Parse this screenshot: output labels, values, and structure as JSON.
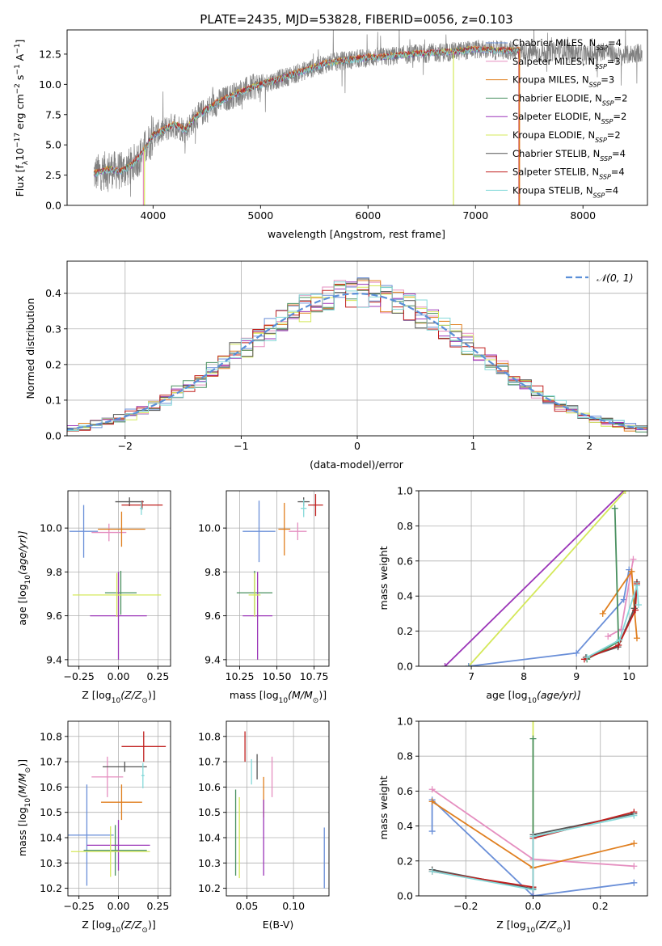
{
  "title": "PLATE=2435, MJD=53828, FIBERID=0056, z=0.103",
  "colors": {
    "Chabrier MILES": "#6a8fd8",
    "Salpeter MILES": "#e58fc0",
    "Kroupa MILES": "#e07f1f",
    "Chabrier ELODIE": "#4a9060",
    "Salpeter ELODIE": "#9b35b8",
    "Kroupa ELODIE": "#d4e85a",
    "Chabrier STELIB": "#555555",
    "Salpeter STELIB": "#c0201f",
    "Kroupa STELIB": "#86d9d9",
    "data": "#808080",
    "normal": "#5b8fd8"
  },
  "chart_data": [
    {
      "id": "spectrum",
      "type": "line",
      "title": "PLATE=2435, MJD=53828, FIBERID=0056, z=0.103",
      "xlabel": "wavelength [Angstrom, rest frame]",
      "ylabel_parts": [
        "Flux [f",
        "λ",
        "10",
        "−17",
        " erg cm",
        "−2",
        " s",
        "−1",
        " A",
        "−1",
        "]"
      ],
      "xlim": [
        3200,
        8600
      ],
      "ylim": [
        0,
        14.5
      ],
      "xticks": [
        4000,
        5000,
        6000,
        7000,
        8000
      ],
      "yticks": [
        0.0,
        2.5,
        5.0,
        7.5,
        10.0,
        12.5
      ],
      "ytick_labels": [
        "0.0",
        "2.5",
        "5.0",
        "7.5",
        "10.0",
        "12.5"
      ],
      "continuum": {
        "x": [
          3450,
          3600,
          3700,
          3800,
          3900,
          4000,
          4100,
          4200,
          4300,
          4400,
          4600,
          4800,
          5000,
          5200,
          5400,
          5600,
          5800,
          6000,
          6200,
          6400,
          6600,
          6800,
          7000,
          7200,
          7400
        ],
        "y": [
          2.6,
          3.0,
          2.8,
          3.3,
          4.3,
          5.8,
          6.2,
          6.7,
          6.2,
          7.3,
          8.5,
          9.3,
          10.0,
          10.5,
          11.1,
          11.7,
          12.0,
          12.2,
          12.3,
          12.5,
          12.6,
          12.7,
          12.9,
          12.8,
          12.8
        ]
      },
      "data_extra": {
        "x": [
          7500,
          7650,
          7800,
          7900,
          8050,
          8200,
          8350,
          8500
        ],
        "y": [
          12.7,
          12.5,
          12.9,
          12.6,
          12.4,
          12.8,
          12.3,
          12.6
        ]
      },
      "model_drops": [
        {
          "model": "Kroupa ELODIE",
          "x": 3920
        },
        {
          "model": "Salpeter MILES",
          "x": 3910
        },
        {
          "model": "Kroupa ELODIE",
          "x": 6795
        },
        {
          "model": "Salpeter STELIB",
          "x": 7405
        },
        {
          "model": "Kroupa MILES",
          "x": 7410
        }
      ],
      "legend_position": "upper-right",
      "legend": [
        {
          "model": "Chabrier MILES",
          "label": "Chabrier MILES, N",
          "sub": "SSP",
          "tail": "=4"
        },
        {
          "model": "Salpeter MILES",
          "label": "Salpeter MILES, N",
          "sub": "SSP",
          "tail": "=3"
        },
        {
          "model": "Kroupa MILES",
          "label": "Kroupa MILES, N",
          "sub": "SSP",
          "tail": "=3"
        },
        {
          "model": "Chabrier ELODIE",
          "label": "Chabrier ELODIE, N",
          "sub": "SSP",
          "tail": "=2"
        },
        {
          "model": "Salpeter ELODIE",
          "label": "Salpeter ELODIE, N",
          "sub": "SSP",
          "tail": "=2"
        },
        {
          "model": "Kroupa ELODIE",
          "label": "Kroupa ELODIE, N",
          "sub": "SSP",
          "tail": "=2"
        },
        {
          "model": "Chabrier STELIB",
          "label": "Chabrier STELIB, N",
          "sub": "SSP",
          "tail": "=4"
        },
        {
          "model": "Salpeter STELIB",
          "label": "Salpeter STELIB, N",
          "sub": "SSP",
          "tail": "=4"
        },
        {
          "model": "Kroupa STELIB",
          "label": "Kroupa STELIB, N",
          "sub": "SSP",
          "tail": "=4"
        }
      ]
    },
    {
      "id": "residuals",
      "type": "line",
      "xlabel": "(data-model)/error",
      "ylabel": "Normed distribution",
      "xlim": [
        -2.5,
        2.5
      ],
      "ylim": [
        0,
        0.49
      ],
      "xticks": [
        -2,
        -1,
        0,
        1,
        2
      ],
      "xtick_labels": [
        "−2",
        "−1",
        "0",
        "1",
        "2"
      ],
      "yticks": [
        0.0,
        0.1,
        0.2,
        0.3,
        0.4
      ],
      "ytick_labels": [
        "0.0",
        "0.1",
        "0.2",
        "0.3",
        "0.4"
      ],
      "grid": true,
      "bin_width": 0.1,
      "legend_label": "𝒩(0, 1)",
      "legend_position": "upper-right"
    },
    {
      "id": "age-z",
      "type": "scatter",
      "xlabel_parts": [
        "Z [log",
        "10",
        "(Z/Z",
        "⊙",
        ")]"
      ],
      "ylabel_parts": [
        "age  [log",
        "10",
        "(age/yr)]"
      ],
      "xlim": [
        -0.32,
        0.33
      ],
      "ylim": [
        9.37,
        10.17
      ],
      "xticks": [
        -0.25,
        0.0,
        0.25
      ],
      "xtick_labels": [
        "−0.25",
        "0.00",
        "0.25"
      ],
      "yticks": [
        9.4,
        9.6,
        9.8,
        10.0
      ],
      "ytick_labels": [
        "9.4",
        "9.6",
        "9.8",
        "10.0"
      ],
      "grid": true,
      "points": [
        {
          "model": "Chabrier MILES",
          "x": -0.22,
          "y": 9.985,
          "xerr": 0.09,
          "yerr": 0.12
        },
        {
          "model": "Salpeter MILES",
          "x": -0.06,
          "y": 9.98,
          "xerr": 0.11,
          "yerr": 0.04
        },
        {
          "model": "Kroupa MILES",
          "x": 0.02,
          "y": 9.995,
          "xerr": 0.15,
          "yerr": 0.08
        },
        {
          "model": "Chabrier ELODIE",
          "x": 0.015,
          "y": 9.705,
          "xerr": 0.1,
          "yerr": 0.1
        },
        {
          "model": "Salpeter ELODIE",
          "x": 0.0,
          "y": 9.6,
          "xerr": 0.18,
          "yerr": 0.2
        },
        {
          "model": "Kroupa ELODIE",
          "x": -0.01,
          "y": 9.695,
          "xerr": 0.28,
          "yerr": 0.1
        },
        {
          "model": "Chabrier STELIB",
          "x": 0.07,
          "y": 10.12,
          "xerr": 0.09,
          "yerr": 0.02
        },
        {
          "model": "Salpeter STELIB",
          "x": 0.15,
          "y": 10.105,
          "xerr": 0.13,
          "yerr": 0.02
        },
        {
          "model": "Kroupa STELIB",
          "x": 0.145,
          "y": 10.09,
          "xerr": 0.01,
          "yerr": 0.03
        }
      ]
    },
    {
      "id": "age-mass",
      "type": "scatter",
      "xlabel_parts": [
        "mass [log",
        "10",
        "(M/M",
        "⊙",
        ")]"
      ],
      "xlim": [
        10.16,
        10.85
      ],
      "ylim": [
        9.37,
        10.17
      ],
      "xticks": [
        10.25,
        10.5,
        10.75
      ],
      "xtick_labels": [
        "10.25",
        "10.50",
        "10.75"
      ],
      "yticks": [
        9.4,
        9.6,
        9.8,
        10.0
      ],
      "ytick_labels": [
        "9.4",
        "9.6",
        "9.8",
        "10.0"
      ],
      "grid": true,
      "points": [
        {
          "model": "Chabrier MILES",
          "x": 10.38,
          "y": 9.985,
          "xerr": 0.11,
          "yerr": 0.14
        },
        {
          "model": "Salpeter MILES",
          "x": 10.64,
          "y": 9.985,
          "xerr": 0.06,
          "yerr": 0.04
        },
        {
          "model": "Kroupa MILES",
          "x": 10.55,
          "y": 9.995,
          "xerr": 0.04,
          "yerr": 0.12
        },
        {
          "model": "Chabrier ELODIE",
          "x": 10.35,
          "y": 9.705,
          "xerr": 0.12,
          "yerr": 0.1
        },
        {
          "model": "Salpeter ELODIE",
          "x": 10.37,
          "y": 9.6,
          "xerr": 0.1,
          "yerr": 0.2
        },
        {
          "model": "Kroupa ELODIE",
          "x": 10.35,
          "y": 9.695,
          "xerr": 0.04,
          "yerr": 0.1
        },
        {
          "model": "Chabrier STELIB",
          "x": 10.68,
          "y": 10.12,
          "xerr": 0.04,
          "yerr": 0.02
        },
        {
          "model": "Salpeter STELIB",
          "x": 10.76,
          "y": 10.105,
          "xerr": 0.05,
          "yerr": 0.05
        },
        {
          "model": "Kroupa STELIB",
          "x": 10.68,
          "y": 10.09,
          "xerr": 0.02,
          "yerr": 0.04
        }
      ]
    },
    {
      "id": "weight-age",
      "type": "line",
      "xlabel_parts": [
        "age  [log",
        "10",
        "(age/yr)]"
      ],
      "ylabel": "mass weight",
      "xlim": [
        6.0,
        10.35
      ],
      "ylim": [
        0,
        1.0
      ],
      "xticks": [
        7,
        8,
        9,
        10
      ],
      "yticks": [
        0.0,
        0.2,
        0.4,
        0.6,
        0.8,
        1.0
      ],
      "ytick_labels": [
        "0.0",
        "0.2",
        "0.4",
        "0.6",
        "0.8",
        "1.0"
      ],
      "grid": true,
      "series": [
        {
          "model": "Salpeter ELODIE",
          "x": [
            6.5,
            9.9
          ],
          "y": [
            0.0,
            1.0
          ]
        },
        {
          "model": "Kroupa ELODIE",
          "x": [
            6.95,
            9.93
          ],
          "y": [
            0.0,
            1.0
          ]
        },
        {
          "model": "Chabrier MILES",
          "x": [
            6.95,
            9.0,
            9.9,
            10.0
          ],
          "y": [
            0.0,
            0.075,
            0.38,
            0.55
          ]
        },
        {
          "model": "Salpeter MILES",
          "x": [
            9.6,
            9.85,
            10.08
          ],
          "y": [
            0.17,
            0.21,
            0.61
          ]
        },
        {
          "model": "Kroupa MILES",
          "x": [
            9.5,
            10.05,
            10.1,
            10.15
          ],
          "y": [
            0.3,
            0.54,
            0.33,
            0.16
          ]
        },
        {
          "model": "Chabrier ELODIE",
          "x": [
            9.2,
            9.8,
            9.73
          ],
          "y": [
            0.04,
            0.14,
            0.9
          ]
        },
        {
          "model": "Chabrier STELIB",
          "x": [
            9.18,
            9.79,
            10.1,
            10.15
          ],
          "y": [
            0.05,
            0.11,
            0.33,
            0.48
          ]
        },
        {
          "model": "Salpeter STELIB",
          "x": [
            9.15,
            9.8,
            10.12,
            10.15
          ],
          "y": [
            0.04,
            0.12,
            0.32,
            0.47
          ]
        },
        {
          "model": "Kroupa STELIB",
          "x": [
            9.2,
            9.82,
            10.15,
            10.18
          ],
          "y": [
            0.05,
            0.15,
            0.46,
            0.35
          ]
        }
      ]
    },
    {
      "id": "mass-z",
      "type": "scatter",
      "xlabel_parts": [
        "Z [log",
        "10",
        "(Z/Z",
        "⊙",
        ")]"
      ],
      "ylabel_parts": [
        "mass [log",
        "10",
        "(M/M",
        "⊙",
        ")]"
      ],
      "xlim": [
        -0.32,
        0.33
      ],
      "ylim": [
        10.17,
        10.86
      ],
      "xticks": [
        -0.25,
        0.0,
        0.25
      ],
      "xtick_labels": [
        "−0.25",
        "0.00",
        "0.25"
      ],
      "yticks": [
        10.2,
        10.3,
        10.4,
        10.5,
        10.6,
        10.7,
        10.8
      ],
      "ytick_labels": [
        "10.2",
        "10.3",
        "10.4",
        "10.5",
        "10.6",
        "10.7",
        "10.8"
      ],
      "grid": true,
      "points": [
        {
          "model": "Chabrier MILES",
          "x": -0.2,
          "y": 10.41,
          "xerr": 0.17,
          "yerr": 0.2
        },
        {
          "model": "Salpeter MILES",
          "x": -0.07,
          "y": 10.64,
          "xerr": 0.1,
          "yerr": 0.08
        },
        {
          "model": "Kroupa MILES",
          "x": 0.02,
          "y": 10.54,
          "xerr": 0.13,
          "yerr": 0.07
        },
        {
          "model": "Chabrier ELODIE",
          "x": -0.02,
          "y": 10.35,
          "xerr": 0.2,
          "yerr": 0.1
        },
        {
          "model": "Salpeter ELODIE",
          "x": 0.0,
          "y": 10.37,
          "xerr": 0.2,
          "yerr": 0.1
        },
        {
          "model": "Kroupa ELODIE",
          "x": -0.05,
          "y": 10.345,
          "xerr": 0.25,
          "yerr": 0.1
        },
        {
          "model": "Chabrier STELIB",
          "x": 0.04,
          "y": 10.68,
          "xerr": 0.14,
          "yerr": 0.02
        },
        {
          "model": "Salpeter STELIB",
          "x": 0.16,
          "y": 10.76,
          "xerr": 0.14,
          "yerr": 0.06
        },
        {
          "model": "Kroupa STELIB",
          "x": 0.155,
          "y": 10.645,
          "xerr": 0.01,
          "yerr": 0.05
        }
      ]
    },
    {
      "id": "mass-ebv",
      "type": "scatter",
      "xlabel": "E(B-V)",
      "xlim": [
        0.028,
        0.138
      ],
      "ylim": [
        10.17,
        10.86
      ],
      "xticks": [
        0.05,
        0.1
      ],
      "xtick_labels": [
        "0.05",
        "0.10"
      ],
      "yticks": [
        10.2,
        10.3,
        10.4,
        10.5,
        10.6,
        10.7,
        10.8
      ],
      "ytick_labels": [
        "10.2",
        "10.3",
        "10.4",
        "10.5",
        "10.6",
        "10.7",
        "10.8"
      ],
      "grid": true,
      "points": [
        {
          "model": "Chabrier MILES",
          "x": 0.133,
          "y": 10.32,
          "xerr": 0,
          "yerr": 0.12
        },
        {
          "model": "Salpeter MILES",
          "x": 0.077,
          "y": 10.64,
          "xerr": 0,
          "yerr": 0.08
        },
        {
          "model": "Kroupa MILES",
          "x": 0.068,
          "y": 10.56,
          "xerr": 0,
          "yerr": 0.08
        },
        {
          "model": "Chabrier ELODIE",
          "x": 0.038,
          "y": 10.42,
          "xerr": 0,
          "yerr": 0.17
        },
        {
          "model": "Salpeter ELODIE",
          "x": 0.068,
          "y": 10.4,
          "xerr": 0,
          "yerr": 0.15
        },
        {
          "model": "Kroupa ELODIE",
          "x": 0.042,
          "y": 10.4,
          "xerr": 0,
          "yerr": 0.16
        },
        {
          "model": "Chabrier STELIB",
          "x": 0.061,
          "y": 10.68,
          "xerr": 0,
          "yerr": 0.05
        },
        {
          "model": "Salpeter STELIB",
          "x": 0.048,
          "y": 10.76,
          "xerr": 0,
          "yerr": 0.06
        },
        {
          "model": "Kroupa STELIB",
          "x": 0.055,
          "y": 10.66,
          "xerr": 0,
          "yerr": 0.05
        }
      ]
    },
    {
      "id": "weight-z",
      "type": "line",
      "xlabel_parts": [
        "Z [log",
        "10",
        "(Z/Z",
        "⊙",
        ")]"
      ],
      "ylabel": "mass weight",
      "xlim": [
        -0.34,
        0.34
      ],
      "ylim": [
        0,
        1.0
      ],
      "xticks": [
        -0.2,
        0.0,
        0.2
      ],
      "xtick_labels": [
        "−0.2",
        "0.0",
        "0.2"
      ],
      "yticks": [
        0.0,
        0.2,
        0.4,
        0.6,
        0.8,
        1.0
      ],
      "ytick_labels": [
        "0.0",
        "0.2",
        "0.4",
        "0.6",
        "0.8",
        "1.0"
      ],
      "grid": true,
      "series": [
        {
          "model": "Kroupa ELODIE",
          "x": [
            0.0,
            0.0
          ],
          "y": [
            0.0,
            1.0
          ]
        },
        {
          "model": "Chabrier ELODIE",
          "x": [
            0.0,
            0.0
          ],
          "y": [
            0.05,
            0.9
          ]
        },
        {
          "model": "Salpeter ELODIE",
          "x": [
            0.0,
            0.0
          ],
          "y": [
            0.0,
            0.21
          ]
        },
        {
          "model": "Chabrier MILES",
          "x": [
            -0.3,
            -0.3,
            0.0,
            0.3
          ],
          "y": [
            0.37,
            0.55,
            0.0,
            0.075
          ]
        },
        {
          "model": "Salpeter MILES",
          "x": [
            -0.3,
            0.0,
            0.3
          ],
          "y": [
            0.61,
            0.21,
            0.17
          ]
        },
        {
          "model": "Kroupa MILES",
          "x": [
            -0.3,
            0.0,
            0.3
          ],
          "y": [
            0.54,
            0.16,
            0.3
          ]
        },
        {
          "model": "Chabrier STELIB",
          "x": [
            -0.3,
            0.0,
            0.0,
            0.3
          ],
          "y": [
            0.15,
            0.04,
            0.35,
            0.47
          ]
        },
        {
          "model": "Salpeter STELIB",
          "x": [
            -0.3,
            0.0,
            0.0,
            0.3
          ],
          "y": [
            0.14,
            0.05,
            0.33,
            0.48
          ]
        },
        {
          "model": "Kroupa STELIB",
          "x": [
            -0.3,
            0.0,
            0.0,
            0.3
          ],
          "y": [
            0.14,
            0.035,
            0.34,
            0.46
          ]
        }
      ]
    }
  ]
}
